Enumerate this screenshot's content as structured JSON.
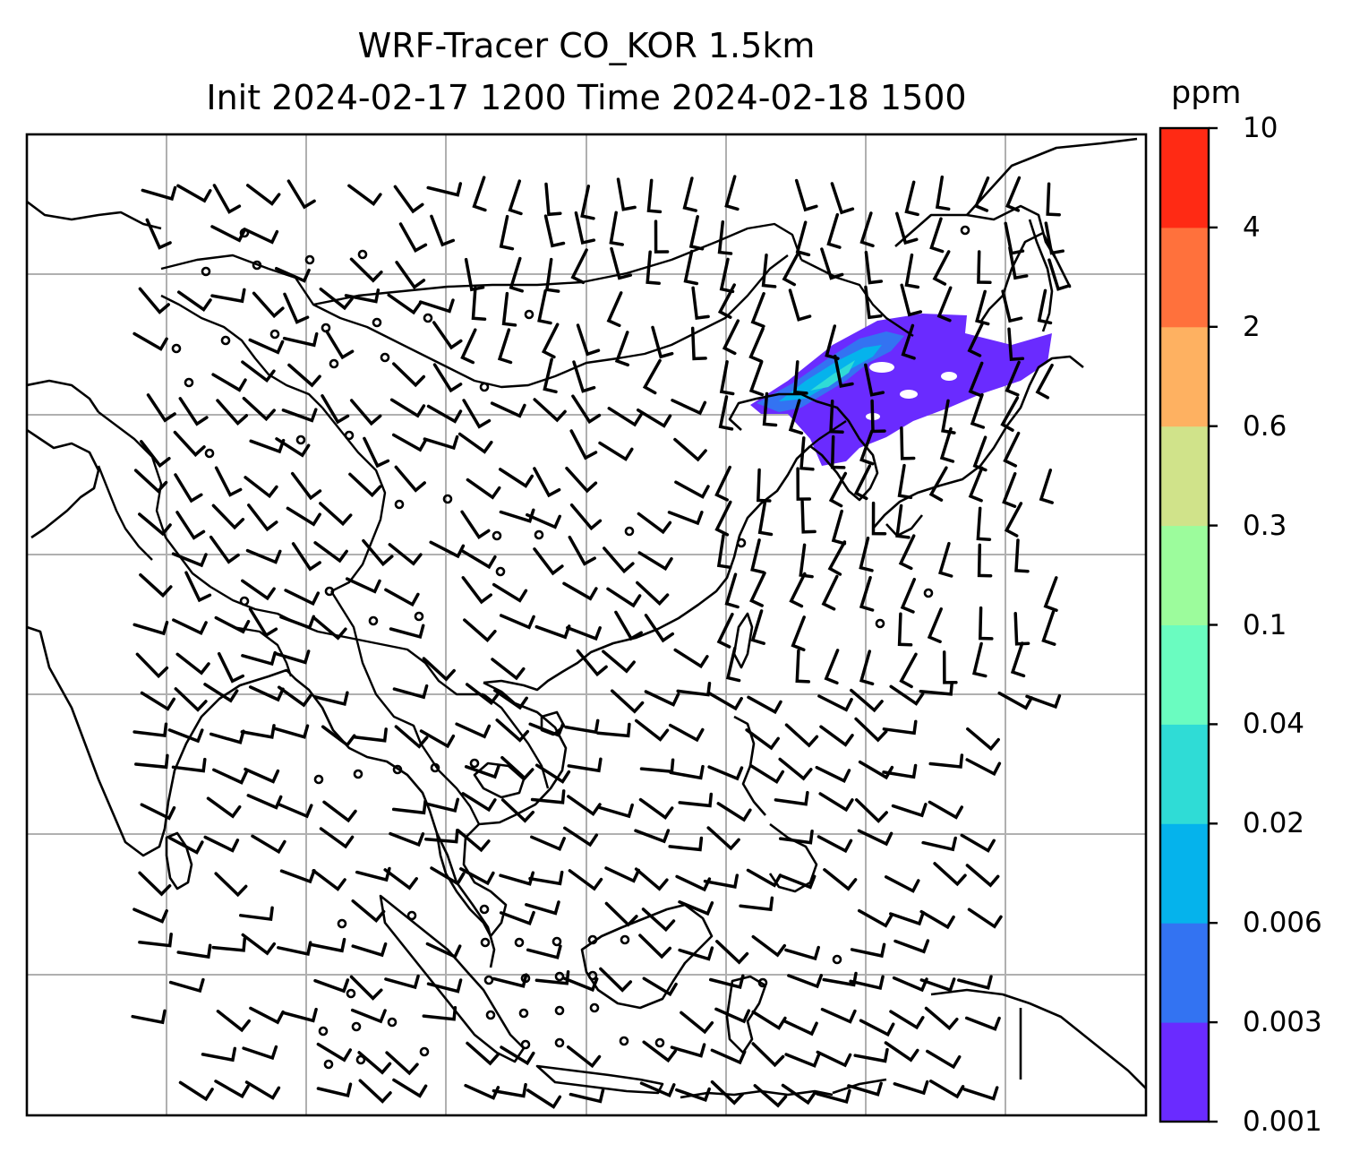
{
  "title": {
    "line1": "WRF-Tracer CO_KOR 1.5km",
    "line2": "Init 2024-02-17 1200 Time 2024-02-18 1500"
  },
  "colorbar": {
    "unit": "ppm",
    "ticks": [
      "0.001",
      "0.003",
      "0.006",
      "0.02",
      "0.04",
      "0.1",
      "0.3",
      "0.6",
      "2",
      "4",
      "10"
    ],
    "colors": [
      "#6a2bff",
      "#3373f2",
      "#05b3ec",
      "#2fdcd6",
      "#6afcc0",
      "#9cfc9c",
      "#d0e38a",
      "#feb161",
      "#ff713c",
      "#ff2a14"
    ]
  },
  "map": {
    "grid": "on",
    "plume_level_colors": [
      "#6a2bff",
      "#3373f2",
      "#05b3ec",
      "#2fdcd6"
    ]
  }
}
